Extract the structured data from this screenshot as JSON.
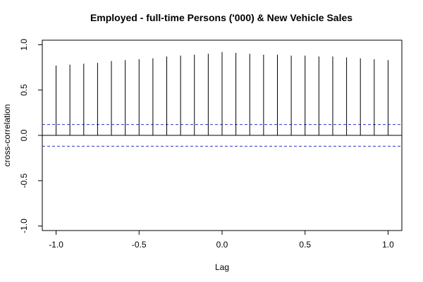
{
  "chart_data": {
    "type": "bar",
    "title": "Employed - full-time Persons ('000) & New Vehicle Sales",
    "xlabel": "Lag",
    "ylabel": "cross-correlation",
    "xlim": [
      -1.083,
      1.083
    ],
    "ylim": [
      -1.05,
      1.05
    ],
    "x_ticks": [
      -1.0,
      -0.5,
      0.0,
      0.5,
      1.0
    ],
    "x_tick_labels": [
      "-1.0",
      "-0.5",
      "0.0",
      "0.5",
      "1.0"
    ],
    "y_ticks": [
      -1.0,
      -0.5,
      0.0,
      0.5,
      1.0
    ],
    "y_tick_labels": [
      "-1.0",
      "-0.5",
      "0.0",
      "0.5",
      "1.0"
    ],
    "x": [
      -1.0,
      -0.9167,
      -0.8333,
      -0.75,
      -0.6667,
      -0.5833,
      -0.5,
      -0.4167,
      -0.3333,
      -0.25,
      -0.1667,
      -0.0833,
      0.0,
      0.0833,
      0.1667,
      0.25,
      0.3333,
      0.4167,
      0.5,
      0.5833,
      0.6667,
      0.75,
      0.8333,
      0.9167,
      1.0
    ],
    "values": [
      0.77,
      0.78,
      0.79,
      0.8,
      0.82,
      0.83,
      0.84,
      0.85,
      0.87,
      0.88,
      0.89,
      0.9,
      0.92,
      0.91,
      0.9,
      0.89,
      0.89,
      0.88,
      0.88,
      0.87,
      0.87,
      0.86,
      0.85,
      0.84,
      0.83
    ],
    "confidence_bounds": [
      0.12,
      -0.12
    ],
    "colors": {
      "stems": "#000000",
      "bounds": "#3333cc",
      "zero_line": "#000000"
    },
    "grid": false,
    "legend": "none"
  }
}
